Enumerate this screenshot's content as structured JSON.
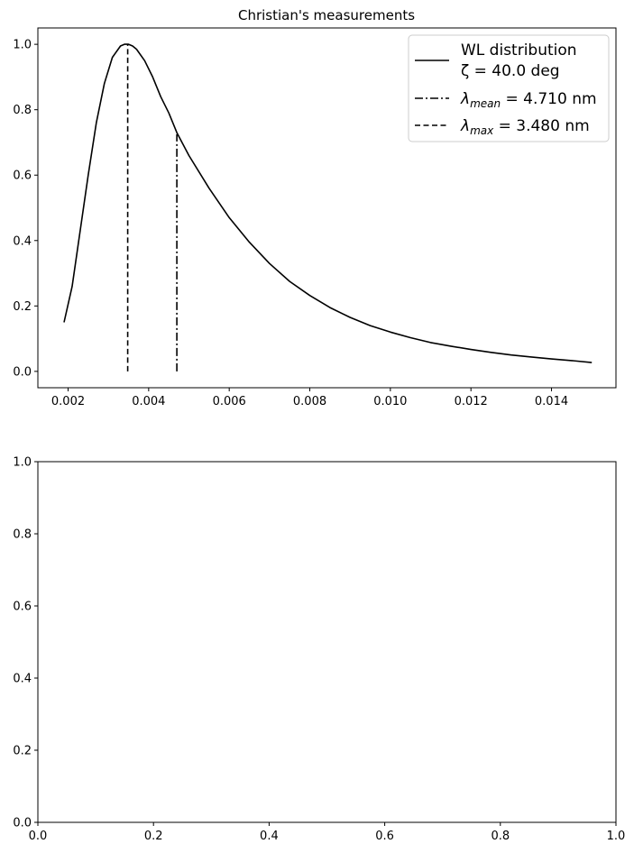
{
  "chart_data": [
    {
      "type": "line",
      "title": "Christian's measurements",
      "xlabel": "",
      "ylabel": "",
      "xlim": [
        0.00125,
        0.0156
      ],
      "ylim": [
        -0.05,
        1.05
      ],
      "grid": false,
      "legend_placement": "top-right",
      "x_ticks": [
        0.002,
        0.004,
        0.006,
        0.008,
        0.01,
        0.012,
        0.014
      ],
      "x_tick_labels": [
        "0.002",
        "0.004",
        "0.006",
        "0.008",
        "0.010",
        "0.012",
        "0.014"
      ],
      "y_ticks": [
        0.0,
        0.2,
        0.4,
        0.6,
        0.8,
        1.0
      ],
      "y_tick_labels": [
        "0.0",
        "0.2",
        "0.4",
        "0.6",
        "0.8",
        "1.0"
      ],
      "series": [
        {
          "name": "WL distribution",
          "name_line2": "ζ = 40.0 deg",
          "style": "solid",
          "color": "#000000",
          "x": [
            0.0019,
            0.0021,
            0.0023,
            0.0025,
            0.0027,
            0.0029,
            0.0031,
            0.0033,
            0.0034,
            0.0035,
            0.0036,
            0.0037,
            0.0039,
            0.0041,
            0.0043,
            0.0045,
            0.0047,
            0.005,
            0.0055,
            0.006,
            0.0065,
            0.007,
            0.0075,
            0.008,
            0.0085,
            0.009,
            0.0095,
            0.01,
            0.0105,
            0.011,
            0.0115,
            0.012,
            0.0125,
            0.013,
            0.0135,
            0.014,
            0.0145,
            0.015
          ],
          "y": [
            0.15,
            0.26,
            0.43,
            0.6,
            0.76,
            0.88,
            0.96,
            0.995,
            1.0,
            1.0,
            0.995,
            0.985,
            0.95,
            0.9,
            0.84,
            0.79,
            0.73,
            0.66,
            0.56,
            0.47,
            0.395,
            0.33,
            0.275,
            0.232,
            0.195,
            0.165,
            0.14,
            0.12,
            0.103,
            0.088,
            0.077,
            0.067,
            0.058,
            0.05,
            0.044,
            0.038,
            0.033,
            0.027
          ]
        },
        {
          "name": "λ_mean = 4.710 nm",
          "label_main": "λ",
          "label_sub": "mean",
          "label_rest": " = 4.710 nm",
          "style": "dashdot",
          "color": "#000000",
          "x": [
            0.0047,
            0.0047
          ],
          "y": [
            0.0,
            0.725
          ]
        },
        {
          "name": "λ_max = 3.480 nm",
          "label_main": "λ",
          "label_sub": "max",
          "label_rest": " = 3.480 nm",
          "style": "dashed",
          "color": "#000000",
          "x": [
            0.00348,
            0.00348
          ],
          "y": [
            0.0,
            1.0
          ]
        }
      ]
    },
    {
      "type": "line",
      "title": "",
      "xlabel": "",
      "ylabel": "",
      "xlim": [
        0.0,
        1.0
      ],
      "ylim": [
        0.0,
        1.0
      ],
      "grid": false,
      "x_ticks": [
        0.0,
        0.2,
        0.4,
        0.6,
        0.8,
        1.0
      ],
      "x_tick_labels": [
        "0.0",
        "0.2",
        "0.4",
        "0.6",
        "0.8",
        "1.0"
      ],
      "y_ticks": [
        0.0,
        0.2,
        0.4,
        0.6,
        0.8,
        1.0
      ],
      "y_tick_labels": [
        "0.0",
        "0.2",
        "0.4",
        "0.6",
        "0.8",
        "1.0"
      ],
      "series": []
    }
  ]
}
